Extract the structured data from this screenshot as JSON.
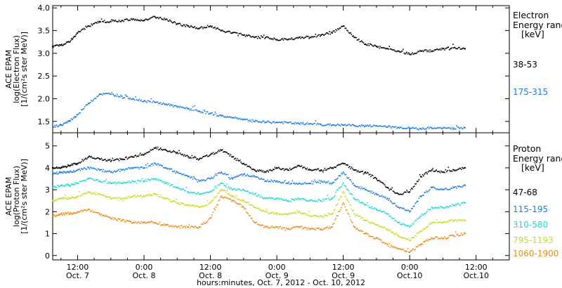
{
  "figure": {
    "xlabel": "hours:minutes, Oct. 7, 2012 - Oct. 10, 2012",
    "x_ticks": [
      {
        "hour": 12,
        "time": "12:00",
        "date": "Oct. 7"
      },
      {
        "hour": 24,
        "time": "0:00",
        "date": "Oct. 8"
      },
      {
        "hour": 36,
        "time": "12:00",
        "date": "Oct. 8"
      },
      {
        "hour": 48,
        "time": "0:00",
        "date": "Oct. 9"
      },
      {
        "hour": 60,
        "time": "12:00",
        "date": "Oct. 9"
      },
      {
        "hour": 72,
        "time": "0:00",
        "date": "Oct.10"
      },
      {
        "hour": 84,
        "time": "12:00",
        "date": "Oct.10"
      }
    ]
  },
  "chart_data": [
    {
      "type": "scatter",
      "ylabel_lines": [
        "ACE EPAM",
        "log(Electron Flux)",
        "[1/(cm²s ster MeV)]"
      ],
      "ylim": [
        1.25,
        4.05
      ],
      "yticks": [
        "1.5",
        "2.0",
        "2.5",
        "3.0",
        "3.5",
        "4.0"
      ],
      "legend_title": [
        "Electron",
        "Energy range",
        "[keV]"
      ],
      "series": [
        {
          "name": "38-53",
          "color": "#000000",
          "x": [
            7.5,
            9,
            10.5,
            12,
            14,
            16,
            18,
            20,
            22,
            24,
            26,
            28,
            30,
            32,
            34,
            36,
            38,
            40,
            42,
            44,
            46,
            48,
            50,
            52,
            54,
            56,
            58,
            60,
            62,
            64,
            66,
            68,
            70,
            72,
            74,
            76,
            78,
            80,
            82
          ],
          "y": [
            3.15,
            3.18,
            3.25,
            3.45,
            3.6,
            3.7,
            3.7,
            3.72,
            3.75,
            3.72,
            3.8,
            3.75,
            3.65,
            3.6,
            3.55,
            3.6,
            3.5,
            3.45,
            3.4,
            3.35,
            3.35,
            3.3,
            3.3,
            3.35,
            3.35,
            3.4,
            3.45,
            3.6,
            3.35,
            3.2,
            3.15,
            3.1,
            3.05,
            2.98,
            3.05,
            3.05,
            3.1,
            3.12,
            3.1
          ]
        },
        {
          "name": "175-315",
          "color": "#1f7fe0",
          "x": [
            7.5,
            9,
            10.5,
            12,
            14,
            16,
            18,
            20,
            22,
            24,
            26,
            28,
            30,
            32,
            34,
            36,
            38,
            40,
            42,
            44,
            46,
            48,
            50,
            52,
            54,
            56,
            58,
            60,
            62,
            64,
            66,
            68,
            70,
            72,
            74,
            76,
            78,
            80,
            82
          ],
          "y": [
            1.38,
            1.42,
            1.5,
            1.65,
            1.9,
            2.1,
            2.1,
            2.05,
            2.0,
            1.95,
            1.92,
            1.88,
            1.82,
            1.78,
            1.72,
            1.68,
            1.62,
            1.58,
            1.55,
            1.5,
            1.48,
            1.48,
            1.47,
            1.45,
            1.45,
            1.43,
            1.42,
            1.42,
            1.41,
            1.4,
            1.4,
            1.38,
            1.37,
            1.35,
            1.34,
            1.35,
            1.35,
            1.35,
            1.36
          ]
        }
      ]
    },
    {
      "type": "scatter",
      "ylabel_lines": [
        "ACE EPAM",
        "log(Proton Flux)",
        "[1/(cm²s ster MeV)]"
      ],
      "ylim": [
        -0.2,
        5.6
      ],
      "yticks": [
        "0",
        "1",
        "2",
        "3",
        "4",
        "5"
      ],
      "legend_title": [
        "Proton",
        "Energy range",
        "[keV]"
      ],
      "series": [
        {
          "name": "47-68",
          "color": "#000000",
          "x": [
            7.5,
            9,
            10.5,
            12,
            14,
            16,
            18,
            20,
            22,
            24,
            26,
            28,
            30,
            32,
            34,
            36,
            38,
            40,
            42,
            44,
            46,
            48,
            50,
            52,
            54,
            56,
            58,
            60,
            62,
            64,
            66,
            68,
            70,
            72,
            74,
            76,
            78,
            80,
            82
          ],
          "y": [
            4.0,
            4.0,
            4.1,
            4.2,
            4.5,
            4.4,
            4.3,
            4.4,
            4.5,
            4.6,
            4.9,
            4.8,
            4.7,
            4.5,
            4.4,
            4.6,
            4.8,
            4.5,
            4.2,
            3.9,
            3.8,
            4.0,
            3.9,
            4.1,
            3.9,
            3.9,
            4.0,
            4.2,
            3.9,
            3.8,
            3.5,
            3.1,
            2.8,
            2.9,
            3.6,
            3.9,
            3.8,
            3.9,
            4.0
          ]
        },
        {
          "name": "115-195",
          "color": "#1f7fe0",
          "x": [
            7.5,
            9,
            10.5,
            12,
            14,
            16,
            18,
            20,
            22,
            24,
            26,
            28,
            30,
            32,
            34,
            36,
            38,
            40,
            42,
            44,
            46,
            48,
            50,
            52,
            54,
            56,
            58,
            60,
            62,
            64,
            66,
            68,
            70,
            72,
            74,
            76,
            78,
            80,
            82
          ],
          "y": [
            3.7,
            3.8,
            3.8,
            3.9,
            4.0,
            3.9,
            3.8,
            3.9,
            4.0,
            4.0,
            4.2,
            4.0,
            3.8,
            3.6,
            3.4,
            3.5,
            3.8,
            3.5,
            3.7,
            3.6,
            3.4,
            3.4,
            3.3,
            3.3,
            3.3,
            3.4,
            3.3,
            3.8,
            3.2,
            3.0,
            2.8,
            2.6,
            2.2,
            2.0,
            2.7,
            3.1,
            3.0,
            3.1,
            3.2
          ]
        },
        {
          "name": "310-580",
          "color": "#22d8d0",
          "x": [
            7.5,
            9,
            10.5,
            12,
            14,
            16,
            18,
            20,
            22,
            24,
            26,
            28,
            30,
            32,
            34,
            36,
            38,
            40,
            42,
            44,
            46,
            48,
            50,
            52,
            54,
            56,
            58,
            60,
            62,
            64,
            66,
            68,
            70,
            72,
            74,
            76,
            78,
            80,
            82
          ],
          "y": [
            3.1,
            3.2,
            3.2,
            3.3,
            3.5,
            3.4,
            3.3,
            3.3,
            3.4,
            3.4,
            3.5,
            3.3,
            3.1,
            2.9,
            2.8,
            2.9,
            3.3,
            3.0,
            3.0,
            2.8,
            2.6,
            2.6,
            2.5,
            2.6,
            2.5,
            2.5,
            2.6,
            3.3,
            2.6,
            2.3,
            2.1,
            1.9,
            1.5,
            1.3,
            1.8,
            2.2,
            2.2,
            2.3,
            2.4
          ]
        },
        {
          "name": "795-1193",
          "color": "#c8dc1e",
          "x": [
            7.5,
            9,
            10.5,
            12,
            14,
            16,
            18,
            20,
            22,
            24,
            26,
            28,
            30,
            32,
            34,
            36,
            38,
            40,
            42,
            44,
            46,
            48,
            50,
            52,
            54,
            56,
            58,
            60,
            62,
            64,
            66,
            68,
            70,
            72,
            74,
            76,
            78,
            80,
            82
          ],
          "y": [
            2.5,
            2.6,
            2.6,
            2.7,
            2.9,
            2.8,
            2.6,
            2.6,
            2.7,
            2.7,
            2.8,
            2.6,
            2.4,
            2.3,
            2.2,
            2.4,
            3.0,
            2.7,
            2.5,
            2.2,
            2.0,
            1.9,
            1.9,
            2.0,
            1.8,
            1.8,
            1.9,
            2.9,
            1.9,
            1.6,
            1.4,
            1.2,
            0.9,
            0.7,
            1.1,
            1.5,
            1.5,
            1.6,
            1.6
          ]
        },
        {
          "name": "1060-1900",
          "color": "#f08a14",
          "x": [
            7.5,
            9,
            10.5,
            12,
            14,
            16,
            18,
            20,
            22,
            24,
            26,
            28,
            30,
            32,
            34,
            36,
            38,
            40,
            42,
            44,
            46,
            48,
            50,
            52,
            54,
            56,
            58,
            60,
            62,
            64,
            66,
            68,
            70,
            72,
            74,
            76,
            78,
            80,
            82
          ],
          "y": [
            1.8,
            1.9,
            1.9,
            2.0,
            2.1,
            1.9,
            1.7,
            1.6,
            1.5,
            1.5,
            1.5,
            1.4,
            1.3,
            1.3,
            1.3,
            1.7,
            2.7,
            2.5,
            2.2,
            1.5,
            1.3,
            1.3,
            1.2,
            1.3,
            1.2,
            1.2,
            1.3,
            2.4,
            1.3,
            1.0,
            0.8,
            0.5,
            0.3,
            0.15,
            0.5,
            0.8,
            0.8,
            0.9,
            1.0
          ]
        }
      ]
    }
  ]
}
